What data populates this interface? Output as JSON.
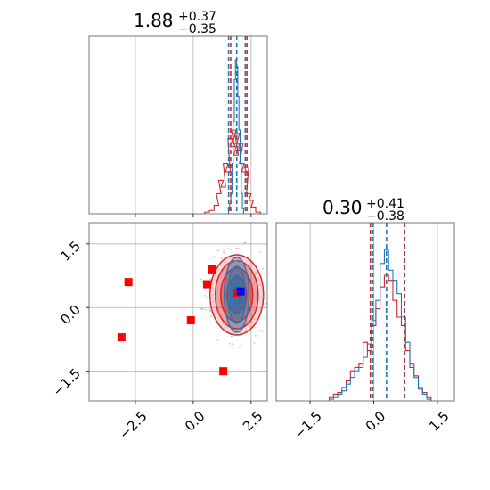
{
  "chart_data": [
    {
      "type": "histogram",
      "panel": "marginal-param-1",
      "title": {
        "value": "1.88",
        "plus": "+0.37",
        "minus": "−0.35"
      },
      "xlim": [
        -4.5,
        3.2
      ],
      "grid": true,
      "quantile_lines_red": [
        1.62,
        2.32
      ],
      "quantile_lines_blue": [
        1.53,
        1.88,
        2.25
      ],
      "red_hist": {
        "x": [
          0.6,
          0.8,
          1.0,
          1.1,
          1.2,
          1.3,
          1.4,
          1.5,
          1.6,
          1.7,
          1.75,
          1.8,
          1.85,
          1.9,
          1.95,
          2.0,
          2.05,
          2.1,
          2.2,
          2.3,
          2.4,
          2.5,
          2.6,
          2.8
        ],
        "y": [
          0.01,
          0.02,
          0.05,
          0.12,
          0.2,
          0.16,
          0.3,
          0.25,
          0.45,
          0.4,
          0.5,
          0.42,
          0.35,
          0.48,
          0.4,
          0.38,
          0.42,
          0.3,
          0.25,
          0.28,
          0.12,
          0.08,
          0.04,
          0.01
        ]
      },
      "blue_hist": {
        "x": [
          1.55,
          1.6,
          1.65,
          1.7,
          1.75,
          1.8,
          1.85,
          1.9,
          1.95,
          2.0,
          2.05,
          2.1,
          2.15
        ],
        "y": [
          0.02,
          0.06,
          0.12,
          0.3,
          0.55,
          0.8,
          0.92,
          0.88,
          0.7,
          0.5,
          0.3,
          0.12,
          0.03
        ]
      }
    },
    {
      "type": "scatter",
      "panel": "joint",
      "xlim": [
        -4.5,
        3.2
      ],
      "ylim": [
        -2.2,
        2.0
      ],
      "grid": true,
      "xticks": [
        "−2.5",
        "0.0",
        "2.5"
      ],
      "xtick_values": [
        -2.5,
        0.0,
        2.5
      ],
      "yticks": [
        "1.5",
        "0.0",
        "−1.5"
      ],
      "ytick_values": [
        1.5,
        0.0,
        -1.5
      ],
      "red_points": [
        {
          "x": -2.8,
          "y": 0.6
        },
        {
          "x": -3.1,
          "y": -0.7
        },
        {
          "x": -0.1,
          "y": -0.3
        },
        {
          "x": 0.6,
          "y": 0.55
        },
        {
          "x": 0.8,
          "y": 0.9
        },
        {
          "x": 1.3,
          "y": -1.5
        }
      ],
      "blue_point": {
        "x": 2.05,
        "y": 0.38
      },
      "red_center": {
        "x": 1.9,
        "y": 0.35
      },
      "contour_centers": {
        "x": 1.88,
        "y": 0.3
      },
      "colors": {
        "red": "#d62728",
        "blue": "#1f77b4",
        "point_red": "#ff0000",
        "point_blue": "#0000ff"
      }
    },
    {
      "type": "histogram",
      "panel": "marginal-param-2",
      "title": {
        "value": "0.30",
        "plus": "+0.41",
        "minus": "−0.38"
      },
      "xlim": [
        -2.3,
        1.9
      ],
      "grid": true,
      "xticks": [
        "−1.5",
        "0.0",
        "1.5"
      ],
      "xtick_values": [
        -1.5,
        0.0,
        1.5
      ],
      "quantile_lines_red": [
        -0.08,
        0.72
      ],
      "quantile_lines_blue": [
        -0.02,
        0.3,
        0.73
      ],
      "red_hist": {
        "x": [
          -1.0,
          -0.9,
          -0.8,
          -0.7,
          -0.6,
          -0.5,
          -0.4,
          -0.3,
          -0.2,
          -0.1,
          0.0,
          0.1,
          0.2,
          0.3,
          0.4,
          0.5,
          0.6,
          0.7,
          0.8,
          0.9,
          1.0,
          1.1,
          1.2,
          1.3
        ],
        "y": [
          0.02,
          0.04,
          0.05,
          0.08,
          0.12,
          0.18,
          0.2,
          0.22,
          0.35,
          0.3,
          0.45,
          0.55,
          0.68,
          0.75,
          0.72,
          0.6,
          0.5,
          0.45,
          0.3,
          0.2,
          0.15,
          0.08,
          0.05,
          0.02
        ]
      },
      "blue_hist": {
        "x": [
          -1.0,
          -0.9,
          -0.8,
          -0.7,
          -0.6,
          -0.5,
          -0.4,
          -0.3,
          -0.2,
          -0.1,
          0.0,
          0.1,
          0.2,
          0.3,
          0.4,
          0.5,
          0.6,
          0.7,
          0.8,
          0.9,
          1.0,
          1.1,
          1.2,
          1.3
        ],
        "y": [
          0.01,
          0.02,
          0.04,
          0.06,
          0.1,
          0.14,
          0.18,
          0.2,
          0.26,
          0.34,
          0.48,
          0.6,
          0.82,
          0.9,
          0.78,
          0.72,
          0.64,
          0.5,
          0.35,
          0.22,
          0.14,
          0.07,
          0.04,
          0.01
        ]
      }
    }
  ]
}
